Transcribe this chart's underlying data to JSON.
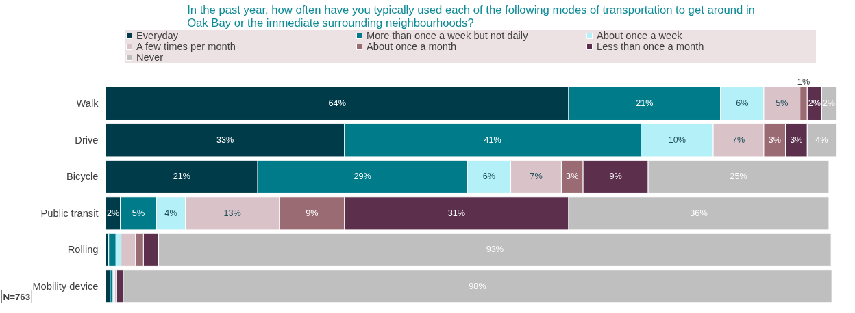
{
  "chart_data": {
    "type": "bar",
    "orientation": "horizontal",
    "stacked": true,
    "title": "In the past year, how often have you typically used each of the following modes of transportation to get around in\nOak Bay or the immediate surrounding neighbourhoods?",
    "categories": [
      "Walk",
      "Drive",
      "Bicycle",
      "Public transit",
      "Rolling",
      "Mobility device"
    ],
    "xlim": [
      0,
      101
    ],
    "tick_labels": "y",
    "legend": "top",
    "grid": false,
    "series": [
      {
        "name": "Everyday",
        "color": "#003b4a",
        "values": [
          64,
          33,
          21,
          2,
          0.4,
          0.6
        ],
        "value_labels": [
          "64%",
          "33%",
          "21%",
          "2%",
          null,
          null
        ]
      },
      {
        "name": "More than once a week but not daily",
        "color": "#007b8a",
        "values": [
          21,
          41,
          29,
          5,
          1,
          0.4
        ],
        "value_labels": [
          "21%",
          "41%",
          "29%",
          "5%",
          null,
          null
        ]
      },
      {
        "name": "About once a week",
        "color": "#b3f0f7",
        "values": [
          6,
          10,
          6,
          4,
          0.7,
          0.2
        ],
        "value_labels": [
          "6%",
          "10%",
          "6%",
          "4%",
          null,
          null
        ]
      },
      {
        "name": "A few times per month",
        "color": "#d9c3c9",
        "values": [
          5,
          7,
          7,
          13,
          2,
          0.3
        ],
        "value_labels": [
          "5%",
          "7%",
          "7%",
          "13%",
          null,
          null
        ]
      },
      {
        "name": "About once a month",
        "color": "#9b6b73",
        "values": [
          1,
          3,
          3,
          9,
          1.1,
          0
        ],
        "value_labels": [
          "1%",
          "3%",
          "3%",
          "9%",
          null,
          null
        ]
      },
      {
        "name": "Less than once a month",
        "color": "#5c2f4d",
        "values": [
          2,
          3,
          9,
          31,
          2.1,
          0.9
        ],
        "value_labels": [
          "2%",
          "3%",
          "9%",
          "31%",
          null,
          null
        ]
      },
      {
        "name": "Never",
        "color": "#bfbfbf",
        "values": [
          2,
          4,
          25,
          36,
          93,
          98
        ],
        "value_labels": [
          "2%",
          "4%",
          "25%",
          "36%",
          "93%",
          "98%"
        ]
      }
    ],
    "annotations": [
      "N=763"
    ]
  }
}
